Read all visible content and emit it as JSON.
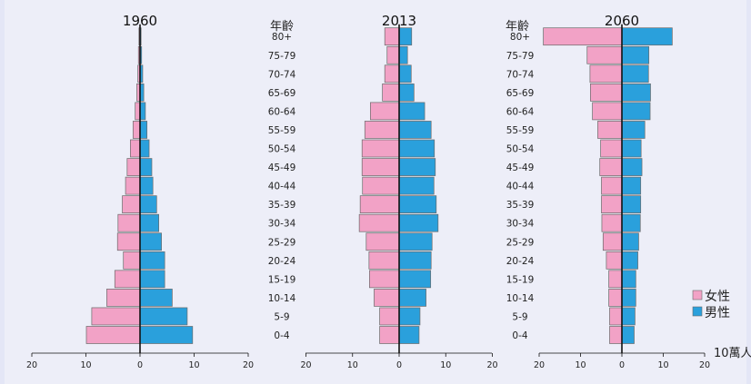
{
  "chart_data": [
    {
      "type": "bar",
      "orientation": "horizontal",
      "title": "1960",
      "categories": [
        "0-4",
        "5-9",
        "10-14",
        "15-19",
        "20-24",
        "25-29",
        "30-34",
        "35-39",
        "40-44",
        "45-49",
        "50-54",
        "55-59",
        "60-64",
        "65-69",
        "70-74",
        "75-79",
        "80+"
      ],
      "xlim": [
        -20,
        20
      ],
      "xticks": [
        "20",
        "10",
        "0",
        "10",
        "20"
      ],
      "series": [
        {
          "name": "女性",
          "values": [
            10.0,
            9.0,
            6.2,
            4.7,
            3.1,
            4.2,
            4.1,
            3.3,
            2.7,
            2.4,
            1.8,
            1.3,
            0.9,
            0.6,
            0.4,
            0.3,
            0.2
          ]
        },
        {
          "name": "男性",
          "values": [
            9.8,
            8.8,
            6.0,
            4.6,
            4.6,
            4.0,
            3.5,
            3.1,
            2.4,
            2.2,
            1.7,
            1.3,
            1.0,
            0.7,
            0.5,
            0.3,
            0.2
          ]
        }
      ]
    },
    {
      "type": "bar",
      "orientation": "horizontal",
      "title": "2013",
      "ylabel": "年齡",
      "categories": [
        "0-4",
        "5-9",
        "10-14",
        "15-19",
        "20-24",
        "25-29",
        "30-34",
        "35-39",
        "40-44",
        "45-49",
        "50-54",
        "55-59",
        "60-64",
        "65-69",
        "70-74",
        "75-79",
        "80+"
      ],
      "xlim": [
        -20,
        20
      ],
      "xticks": [
        "20",
        "10",
        "0",
        "10",
        "20"
      ],
      "series": [
        {
          "name": "女性",
          "values": [
            4.2,
            4.2,
            5.4,
            6.4,
            6.5,
            7.1,
            8.6,
            8.4,
            7.9,
            8.0,
            8.0,
            7.4,
            6.2,
            3.6,
            3.1,
            2.6,
            3.1
          ]
        },
        {
          "name": "男性",
          "values": [
            4.3,
            4.5,
            5.8,
            6.8,
            6.9,
            7.1,
            8.4,
            8.0,
            7.5,
            7.8,
            7.6,
            6.9,
            5.5,
            3.2,
            2.6,
            1.8,
            2.7
          ]
        }
      ]
    },
    {
      "type": "bar",
      "orientation": "horizontal",
      "title": "2060",
      "ylabel": "年齡",
      "categories": [
        "0-4",
        "5-9",
        "10-14",
        "15-19",
        "20-24",
        "25-29",
        "30-34",
        "35-39",
        "40-44",
        "45-49",
        "50-54",
        "55-59",
        "60-64",
        "65-69",
        "70-74",
        "75-79",
        "80+"
      ],
      "xlim": [
        -20,
        20
      ],
      "xticks": [
        "20",
        "10",
        "0",
        "10",
        "20"
      ],
      "unit": "10萬人",
      "series": [
        {
          "name": "女性",
          "values": [
            3.0,
            3.0,
            3.2,
            3.2,
            3.8,
            4.6,
            4.9,
            5.0,
            5.0,
            5.4,
            5.2,
            5.9,
            7.2,
            7.7,
            7.8,
            8.5,
            19.2
          ]
        },
        {
          "name": "男性",
          "values": [
            3.0,
            3.2,
            3.4,
            3.4,
            3.9,
            4.1,
            4.5,
            4.6,
            4.6,
            4.9,
            4.7,
            5.6,
            6.9,
            7.0,
            6.5,
            6.6,
            12.3
          ]
        }
      ]
    }
  ],
  "legend": {
    "female_label": "女性",
    "male_label": "男性"
  },
  "colors": {
    "female": "#f2a2c6",
    "male": "#2aa0dc",
    "bar_edge": "#6a6a6a"
  }
}
